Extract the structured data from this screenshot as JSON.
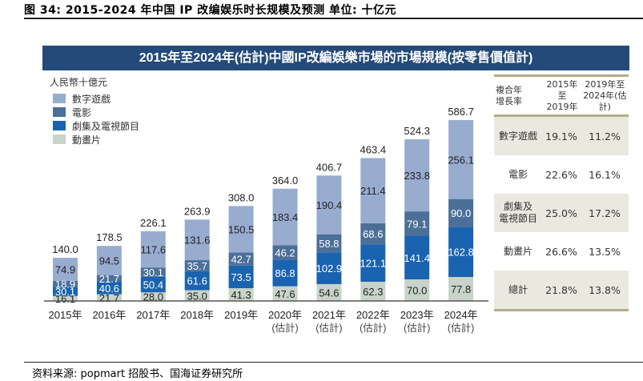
{
  "figure_title": "图 34:  2015-2024 年中国 IP 改编娱乐时长规模及预测 单位: 十亿元",
  "banner_title": "2015年至2024年(估計)中國IP改編娛樂市場的市場規模(按零售價值計)",
  "unit_label": "人民幣十億元",
  "source": "资料来源: popmart 招股书、国海证券研究所",
  "chart_data": {
    "type": "bar",
    "stacked": true,
    "title": "2015年至2024年(估計)中國IP改編娛樂市場的市場規模(按零售價值計)",
    "ylabel": "人民幣十億元",
    "xlabel": "",
    "categories": [
      "2015年",
      "2016年",
      "2017年",
      "2018年",
      "2019年",
      "2020年",
      "2021年",
      "2022年",
      "2023年",
      "2024年"
    ],
    "category_sublabels": [
      "",
      "",
      "",
      "",
      "",
      "(估計)",
      "(估計)",
      "(估計)",
      "(估計)",
      "(估計)"
    ],
    "ylim": [
      0,
      600
    ],
    "grid": false,
    "legend_position": "top-left",
    "series": [
      {
        "name": "動畫片",
        "color": "#c8d3c9",
        "label_color": "#222222",
        "values": [
          16.1,
          21.7,
          28.0,
          35.0,
          41.3,
          47.6,
          54.6,
          62.3,
          70.0,
          77.8
        ]
      },
      {
        "name": "劇集及電視節目",
        "color": "#1a63b0",
        "label_color": "#ffffff",
        "values": [
          30.1,
          40.6,
          50.4,
          61.6,
          73.5,
          86.8,
          102.9,
          121.1,
          141.4,
          162.8
        ]
      },
      {
        "name": "電影",
        "color": "#4c6f98",
        "label_color": "#ffffff",
        "values": [
          18.9,
          21.7,
          30.1,
          35.7,
          42.7,
          46.2,
          58.8,
          68.6,
          79.1,
          90.0
        ]
      },
      {
        "name": "數字遊戲",
        "color": "#98acd0",
        "label_color": "#222222",
        "values": [
          74.9,
          94.5,
          117.6,
          131.6,
          150.5,
          183.4,
          190.4,
          211.4,
          233.8,
          256.1
        ]
      }
    ],
    "totals": [
      140.0,
      178.5,
      226.1,
      263.9,
      308.0,
      364.0,
      406.7,
      463.4,
      524.3,
      586.7
    ],
    "legend_order": [
      "數字遊戲",
      "電影",
      "劇集及電視節目",
      "動畫片"
    ]
  },
  "cagr_table": {
    "header": {
      "col0": "複合年\n增長率",
      "col1": "2015年至\n2019年",
      "col2": "2019年至\n2024年(估計)"
    },
    "rows": [
      {
        "label": "數字遊戲",
        "v1": "19.1%",
        "v2": "11.2%",
        "shaded": true
      },
      {
        "label": "電影",
        "v1": "22.6%",
        "v2": "16.1%",
        "shaded": false
      },
      {
        "label": "劇集及\n電視節目",
        "v1": "25.0%",
        "v2": "17.2%",
        "shaded": true
      },
      {
        "label": "動畫片",
        "v1": "26.6%",
        "v2": "13.5%",
        "shaded": false
      },
      {
        "label": "總計",
        "v1": "21.8%",
        "v2": "13.8%",
        "shaded": true
      }
    ]
  }
}
